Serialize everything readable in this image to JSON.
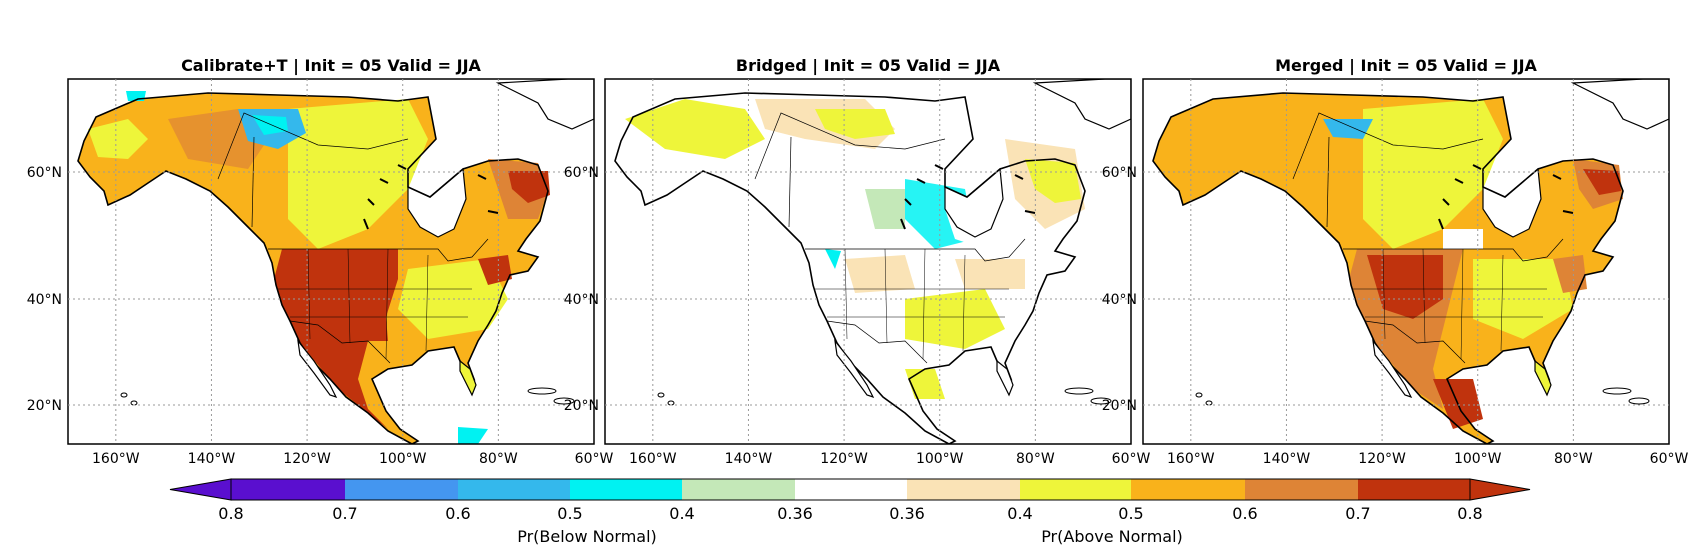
{
  "panels": [
    {
      "title": "Calibrate+T |  Init = 05 Valid = JJA",
      "map": "calibrate_t"
    },
    {
      "title": "Bridged |  Init = 05 Valid = JJA",
      "map": "bridged"
    },
    {
      "title": "Merged |  Init = 05 Valid = JJA",
      "map": "merged"
    }
  ],
  "axes": {
    "lon_ticks": [
      "160°W",
      "140°W",
      "120°W",
      "100°W",
      "80°W",
      "60°W"
    ],
    "lat_ticks": [
      "60°N",
      "40°N",
      "20°N"
    ],
    "lon_range": [
      -170,
      -60
    ],
    "lat_range": [
      13,
      75
    ]
  },
  "colorbar": {
    "below_label": "Pr(Below Normal)",
    "above_label": "Pr(Above Normal)",
    "tick_labels": [
      "0.8",
      "0.7",
      "0.6",
      "0.5",
      "0.4",
      "0.36",
      "0.36",
      "0.4",
      "0.5",
      "0.6",
      "0.7",
      "0.8"
    ],
    "colors": [
      "#5a0fcf",
      "#4496f0",
      "#34b8ec",
      "#00f2f2",
      "#c4e8b8",
      "#ffffff",
      "#fae3b6",
      "#eef53a",
      "#f9b21b",
      "#de8436",
      "#c0330d"
    ]
  }
}
